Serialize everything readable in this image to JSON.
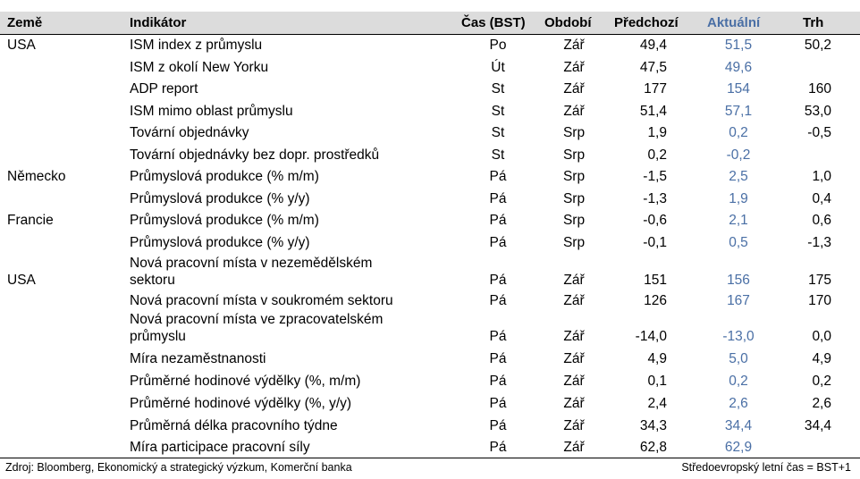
{
  "headers": {
    "country": "Země",
    "indicator": "Indikátor",
    "time": "Čas (BST)",
    "period": "Období",
    "previous": "Předchozí",
    "actual": "Aktuální",
    "market": "Trh"
  },
  "rows": [
    {
      "country": "USA",
      "ind1": "ISM index z průmyslu",
      "ind2": "",
      "time": "Po",
      "period": "Zář",
      "prev": "49,4",
      "act": "51,5",
      "mkt": "50,2"
    },
    {
      "country": "",
      "ind1": "ISM z okolí New Yorku",
      "ind2": "",
      "time": "Út",
      "period": "Zář",
      "prev": "47,5",
      "act": "49,6",
      "mkt": ""
    },
    {
      "country": "",
      "ind1": "ADP report",
      "ind2": "",
      "time": "St",
      "period": "Zář",
      "prev": "177",
      "act": "154",
      "mkt": "160"
    },
    {
      "country": "",
      "ind1": "ISM mimo oblast průmyslu",
      "ind2": "",
      "time": "St",
      "period": "Zář",
      "prev": "51,4",
      "act": "57,1",
      "mkt": "53,0"
    },
    {
      "country": "",
      "ind1": "Tovární objednávky",
      "ind2": "",
      "time": "St",
      "period": "Srp",
      "prev": "1,9",
      "act": "0,2",
      "mkt": "-0,5"
    },
    {
      "country": "",
      "ind1": "Tovární objednávky bez dopr. prostředků",
      "ind2": "",
      "time": "St",
      "period": "Srp",
      "prev": "0,2",
      "act": "-0,2",
      "mkt": ""
    },
    {
      "country": "Německo",
      "ind1": "Průmyslová produkce (% m/m)",
      "ind2": "",
      "time": "Pá",
      "period": "Srp",
      "prev": "-1,5",
      "act": "2,5",
      "mkt": "1,0"
    },
    {
      "country": "",
      "ind1": "Průmyslová produkce (% y/y)",
      "ind2": "",
      "time": "Pá",
      "period": "Srp",
      "prev": "-1,3",
      "act": "1,9",
      "mkt": "0,4"
    },
    {
      "country": "Francie",
      "ind1": "Průmyslová produkce (% m/m)",
      "ind2": "",
      "time": "Pá",
      "period": "Srp",
      "prev": "-0,6",
      "act": "2,1",
      "mkt": "0,6"
    },
    {
      "country": "",
      "ind1": "Průmyslová produkce (% y/y)",
      "ind2": "",
      "time": "Pá",
      "period": "Srp",
      "prev": "-0,1",
      "act": "0,5",
      "mkt": "-1,3"
    },
    {
      "country": "USA",
      "ind1": "Nová pracovní místa v nezemědělském",
      "ind2": "sektoru",
      "time": "Pá",
      "period": "Zář",
      "prev": "151",
      "act": "156",
      "mkt": "175"
    },
    {
      "country": "",
      "ind1": "Nová pracovní místa v soukromém sektoru",
      "ind2": "",
      "time": "Pá",
      "period": "Zář",
      "prev": "126",
      "act": "167",
      "mkt": "170"
    },
    {
      "country": "",
      "ind1": "Nová pracovní místa ve zpracovatelském",
      "ind2": "průmyslu",
      "time": "Pá",
      "period": "Zář",
      "prev": "-14,0",
      "act": "-13,0",
      "mkt": "0,0"
    },
    {
      "country": "",
      "ind1": "Míra nezaměstnanosti",
      "ind2": "",
      "time": "Pá",
      "period": "Zář",
      "prev": "4,9",
      "act": "5,0",
      "mkt": "4,9"
    },
    {
      "country": "",
      "ind1": "Průměrné hodinové výdělky (%, m/m)",
      "ind2": "",
      "time": "Pá",
      "period": "Zář",
      "prev": "0,1",
      "act": "0,2",
      "mkt": "0,2"
    },
    {
      "country": "",
      "ind1": "Průměrné hodinové výdělky (%, y/y)",
      "ind2": "",
      "time": "Pá",
      "period": "Zář",
      "prev": "2,4",
      "act": "2,6",
      "mkt": "2,6"
    },
    {
      "country": "",
      "ind1": "Průměrná délka pracovního týdne",
      "ind2": "",
      "time": "Pá",
      "period": "Zář",
      "prev": "34,3",
      "act": "34,4",
      "mkt": "34,4"
    },
    {
      "country": "",
      "ind1": "Míra participace pracovní síly",
      "ind2": "",
      "time": "Pá",
      "period": "Zář",
      "prev": "62,8",
      "act": "62,9",
      "mkt": ""
    }
  ],
  "footer": {
    "source": "Zdroj: Bloomberg, Ekonomický a strategický výzkum, Komerční banka",
    "note": "Středoevropský letní čas = BST+1"
  },
  "colors": {
    "header_bg": "#dcdcdc",
    "actual_text": "#4a6fa5"
  }
}
